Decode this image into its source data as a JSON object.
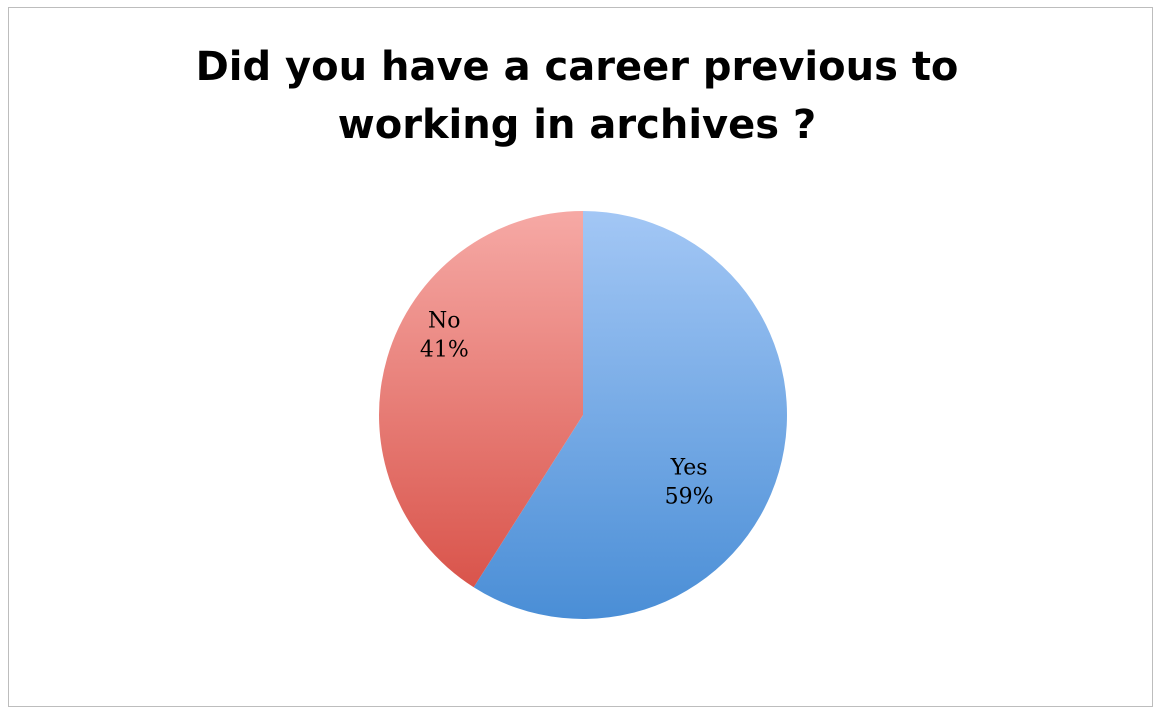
{
  "chart_data": {
    "type": "pie",
    "title": [
      "Did you have a career previous to",
      "working in archives ?"
    ],
    "slices": [
      {
        "label": "Yes",
        "value": 59,
        "value_label": "59%",
        "color": "#4a8ad4"
      },
      {
        "label": "No",
        "value": 41,
        "value_label": "41%",
        "color": "#d9534a"
      }
    ],
    "legend": "none",
    "data_labels": "inside"
  }
}
